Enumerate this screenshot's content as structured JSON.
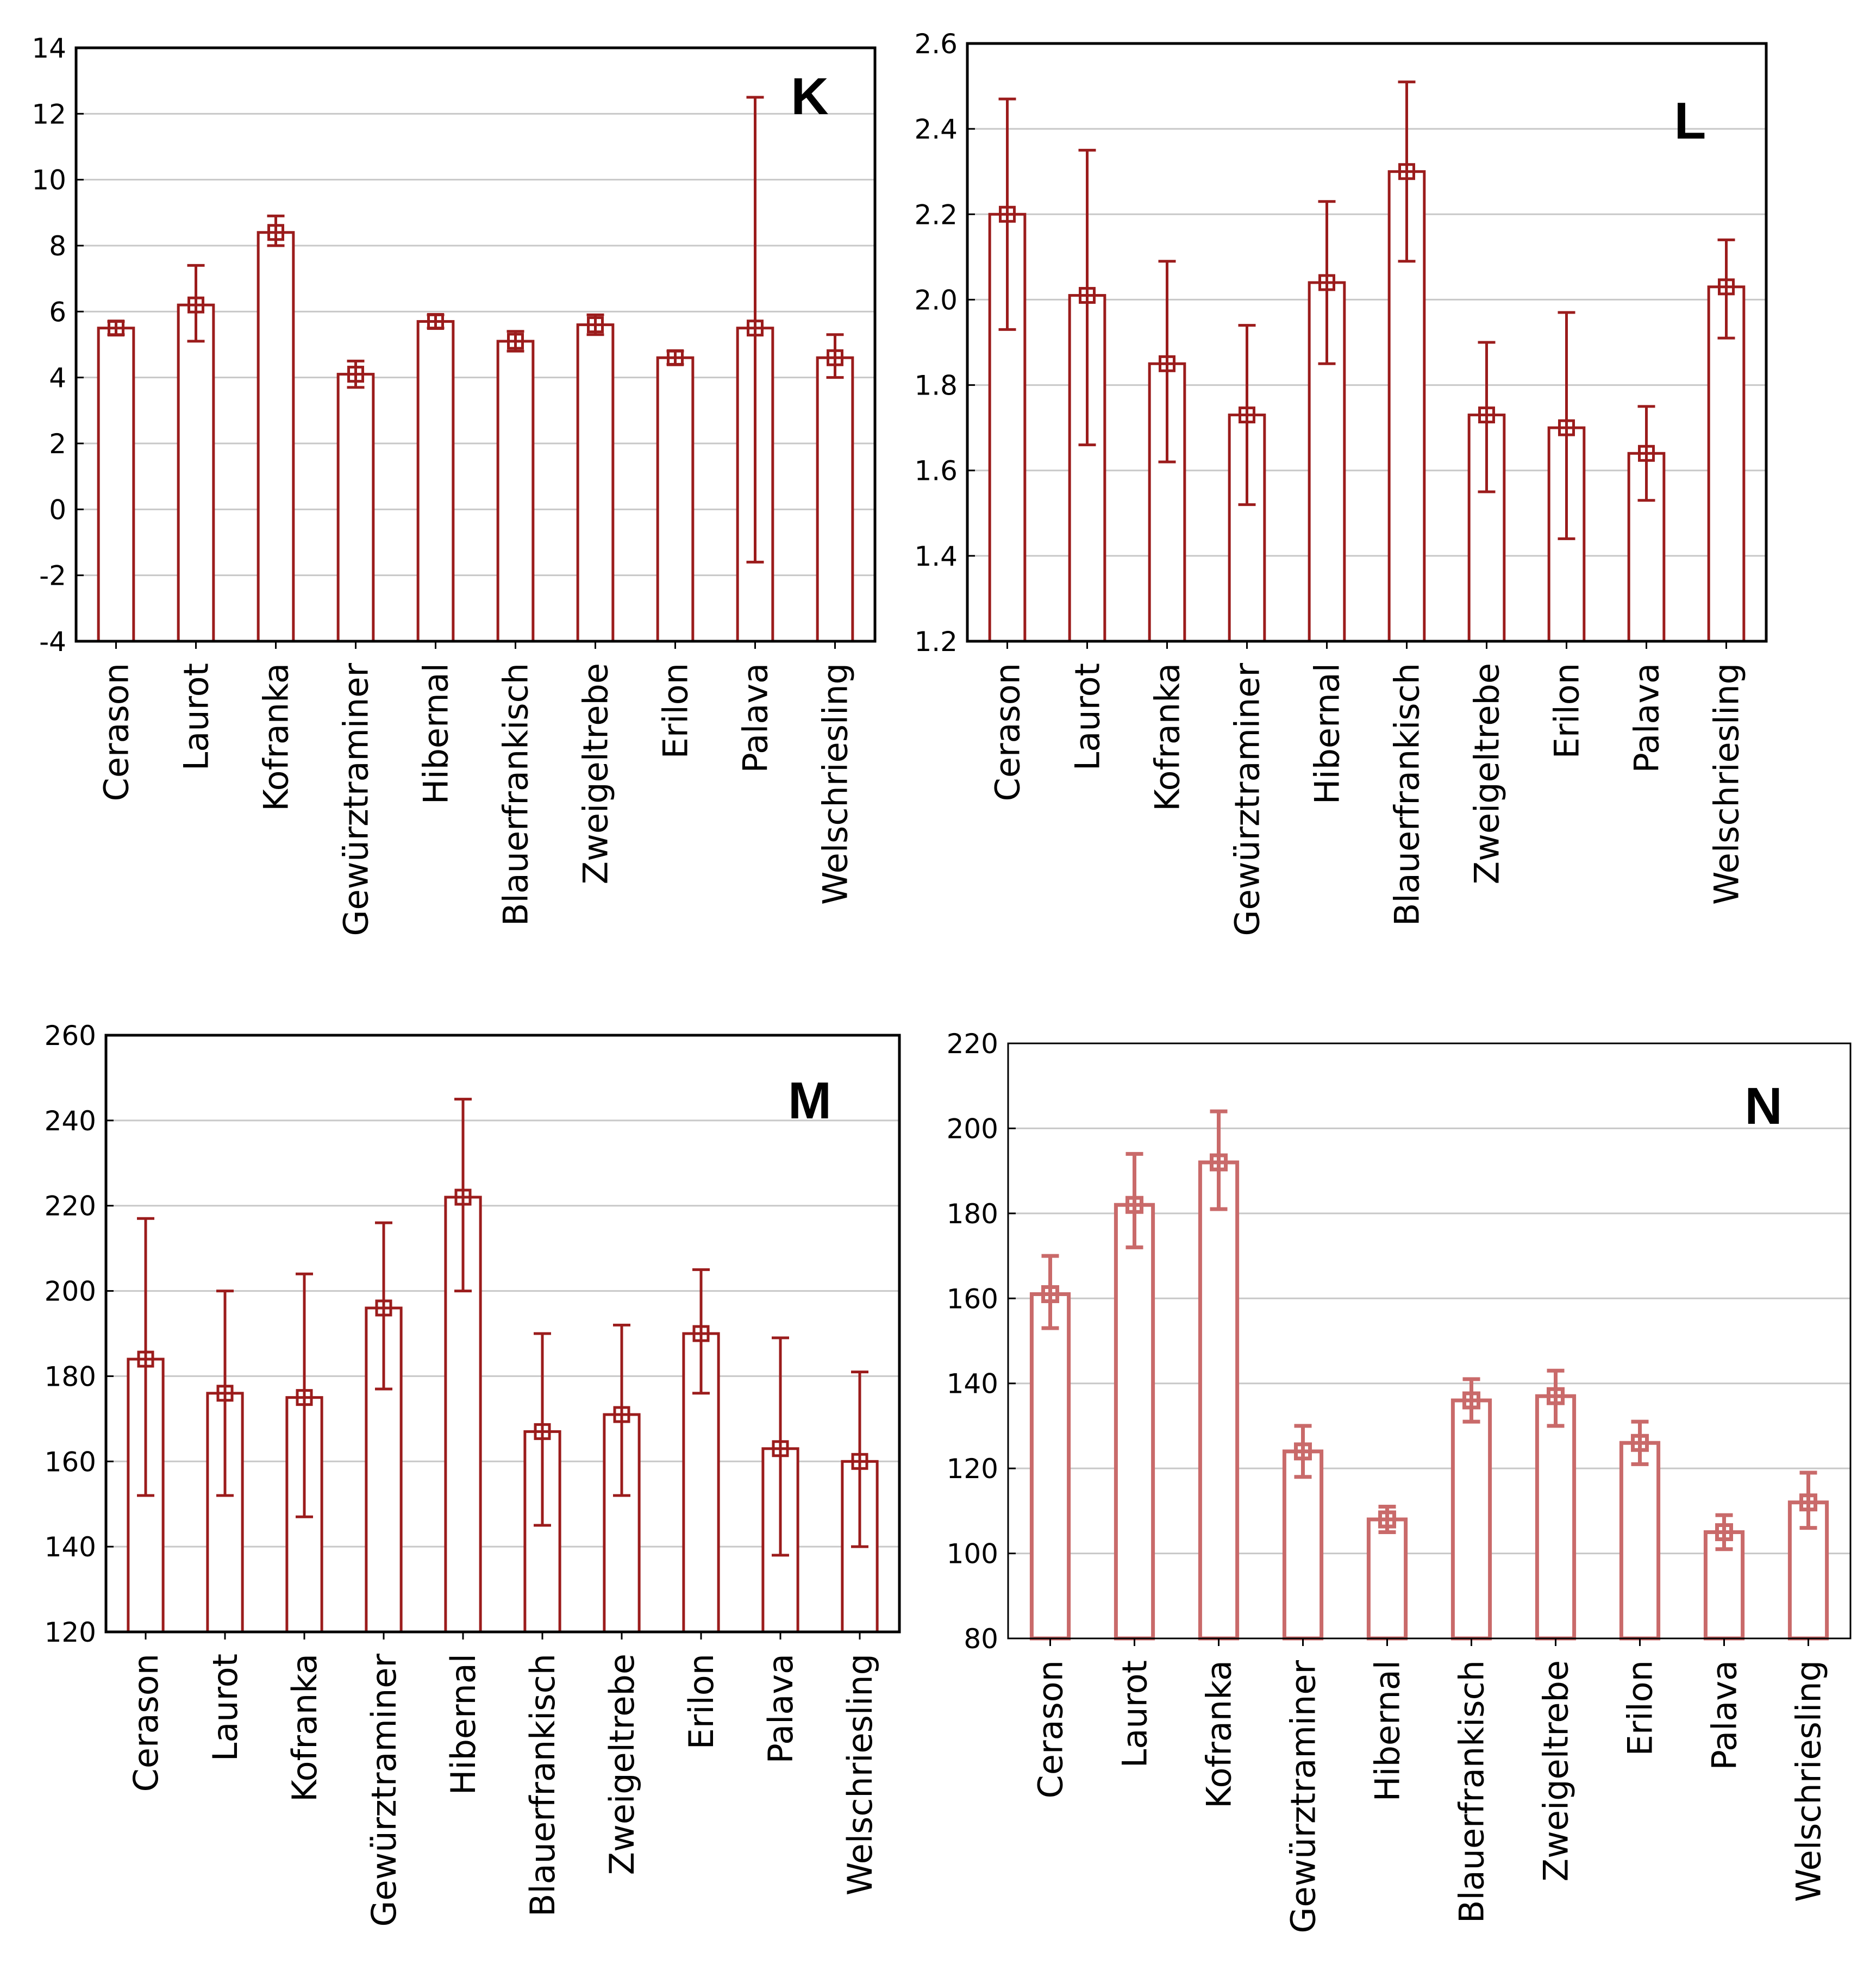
{
  "colors": {
    "main": "#9b1c1c",
    "light": "#c96a6a",
    "grid": "#c8c8c8",
    "frame": "#000000"
  },
  "chart_data": [
    {
      "panel": "K",
      "type": "bar",
      "categories": [
        "Cerason",
        "Laurot",
        "Kofranka",
        "Gewürztraminer",
        "Hibernal",
        "Blauerfrankisch",
        "Zweigeltrebe",
        "Erilon",
        "Palava",
        "Welschriesling"
      ],
      "values": [
        5.5,
        6.2,
        8.4,
        4.1,
        5.7,
        5.1,
        5.6,
        4.6,
        5.5,
        4.6
      ],
      "err_low": [
        5.3,
        5.1,
        8.0,
        3.7,
        5.5,
        4.8,
        5.3,
        4.4,
        -1.6,
        4.0
      ],
      "err_high": [
        5.7,
        7.4,
        8.9,
        4.5,
        5.9,
        5.4,
        5.9,
        4.8,
        12.5,
        5.3
      ],
      "ylim": [
        -4,
        14
      ],
      "yticks": [
        "14",
        "12",
        "10",
        "8",
        "6",
        "4",
        "2",
        "0",
        "-2",
        "-4"
      ],
      "title": "",
      "xlabel": "",
      "ylabel": ""
    },
    {
      "panel": "L",
      "type": "bar",
      "categories": [
        "Cerason",
        "Laurot",
        "Kofranka",
        "Gewürztraminer",
        "Hibernal",
        "Blauerfrankisch",
        "Zweigeltrebe",
        "Erilon",
        "Palava",
        "Welschriesling"
      ],
      "values": [
        2.2,
        2.01,
        1.85,
        1.73,
        2.04,
        2.3,
        1.73,
        1.7,
        1.64,
        2.03
      ],
      "err_low": [
        1.93,
        1.66,
        1.62,
        1.52,
        1.85,
        2.09,
        1.55,
        1.44,
        1.53,
        1.91
      ],
      "err_high": [
        2.47,
        2.35,
        2.09,
        1.94,
        2.23,
        2.51,
        1.9,
        1.97,
        1.75,
        2.14
      ],
      "ylim": [
        1.2,
        2.6
      ],
      "yticks": [
        "2.6",
        "2.4",
        "2.2",
        "2.0",
        "1.8",
        "1.6",
        "1.4",
        "1.2"
      ],
      "title": "",
      "xlabel": "",
      "ylabel": ""
    },
    {
      "panel": "M",
      "type": "bar",
      "categories": [
        "Cerason",
        "Laurot",
        "Kofranka",
        "Gewürztraminer",
        "Hibernal",
        "Blauerfrankisch",
        "Zweigeltrebe",
        "Erilon",
        "Palava",
        "Welschriesling"
      ],
      "values": [
        184,
        176,
        175,
        196,
        222,
        167,
        171,
        190,
        163,
        160
      ],
      "err_low": [
        152,
        152,
        147,
        177,
        200,
        145,
        152,
        176,
        138,
        140
      ],
      "err_high": [
        217,
        200,
        204,
        216,
        245,
        190,
        192,
        205,
        189,
        181
      ],
      "ylim": [
        120,
        260
      ],
      "yticks": [
        "260",
        "240",
        "220",
        "200",
        "180",
        "160",
        "140",
        "120"
      ],
      "title": "",
      "xlabel": "",
      "ylabel": ""
    },
    {
      "panel": "N",
      "type": "bar",
      "categories": [
        "Cerason",
        "Laurot",
        "Kofranka",
        "Gewürztraminer",
        "Hibernal",
        "Blauerfrankisch",
        "Zweigeltrebe",
        "Erilon",
        "Palava",
        "Welschriesling"
      ],
      "values": [
        161,
        182,
        192,
        124,
        108,
        136,
        137,
        126,
        105,
        112
      ],
      "err_low": [
        153,
        172,
        181,
        118,
        105,
        131,
        130,
        121,
        101,
        106
      ],
      "err_high": [
        170,
        194,
        204,
        130,
        111,
        141,
        143,
        131,
        109,
        119
      ],
      "ylim": [
        80,
        220
      ],
      "yticks": [
        "220",
        "200",
        "180",
        "160",
        "140",
        "120",
        "100",
        "80"
      ],
      "title": "",
      "xlabel": "",
      "ylabel": ""
    }
  ]
}
